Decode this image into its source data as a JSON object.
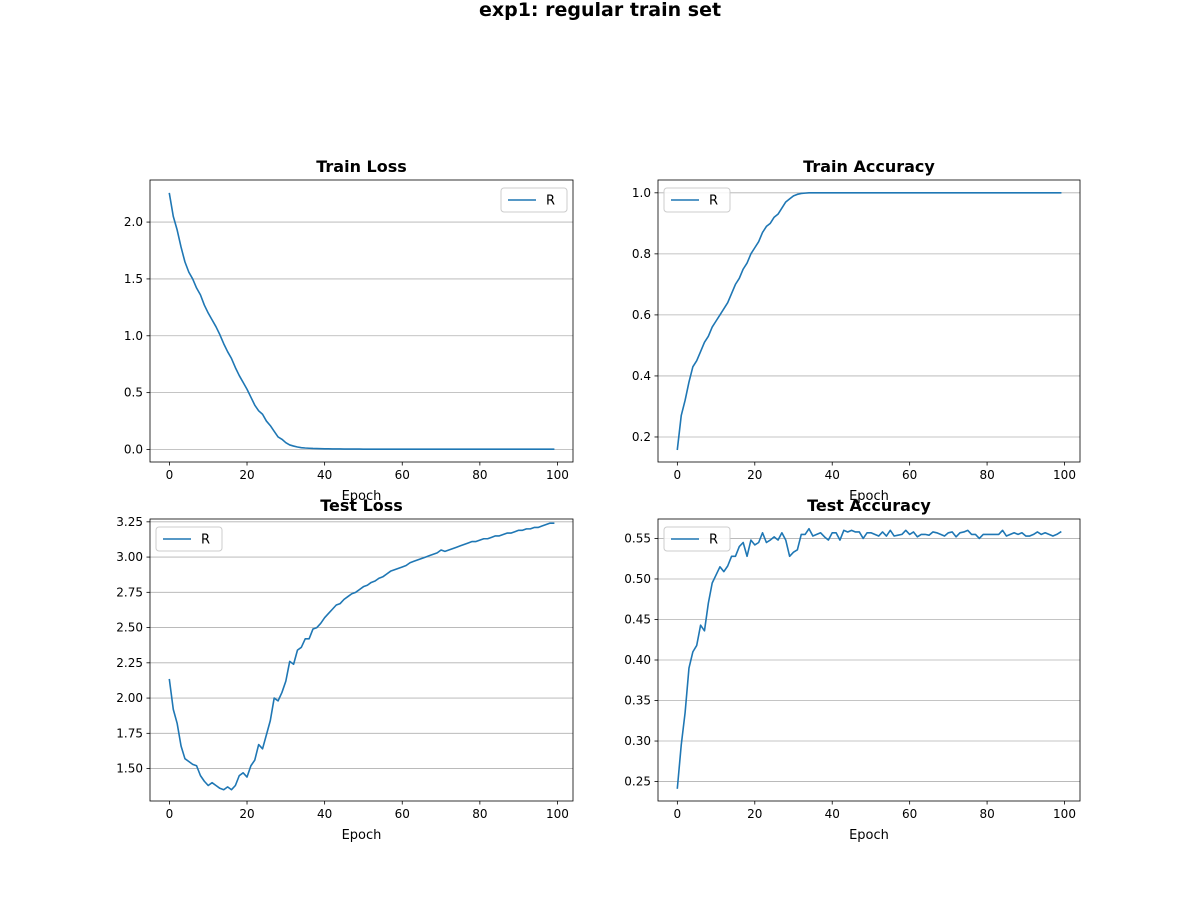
{
  "figure": {
    "suptitle": "exp1: regular train set"
  },
  "colors": {
    "line": "#1f77b4",
    "grid": "#b0b0b0",
    "axis": "#000000",
    "background": "#ffffff"
  },
  "chart_data": [
    {
      "type": "line",
      "title": "Train Loss",
      "xlabel": "Epoch",
      "ylabel": "",
      "grid": "y",
      "legend": "upper right",
      "xlim": [
        -5,
        104
      ],
      "ylim": [
        -0.11,
        2.37
      ],
      "xticks": [
        "0",
        "20",
        "40",
        "60",
        "80",
        "100"
      ],
      "yticks": [
        "0.0",
        "0.5",
        "1.0",
        "1.5",
        "2.0"
      ],
      "series": [
        {
          "name": "R",
          "values": [
            2.25,
            2.05,
            1.93,
            1.78,
            1.65,
            1.56,
            1.5,
            1.42,
            1.36,
            1.27,
            1.2,
            1.14,
            1.08,
            1.01,
            0.93,
            0.86,
            0.8,
            0.72,
            0.65,
            0.59,
            0.53,
            0.46,
            0.39,
            0.34,
            0.31,
            0.25,
            0.21,
            0.16,
            0.11,
            0.09,
            0.06,
            0.04,
            0.03,
            0.022,
            0.016,
            0.013,
            0.011,
            0.009,
            0.008,
            0.007,
            0.006,
            0.006,
            0.005,
            0.005,
            0.005,
            0.004,
            0.004,
            0.004,
            0.004,
            0.004,
            0.003,
            0.003,
            0.003,
            0.003,
            0.003,
            0.003,
            0.003,
            0.003,
            0.003,
            0.003,
            0.003,
            0.003,
            0.003,
            0.003,
            0.003,
            0.003,
            0.003,
            0.003,
            0.003,
            0.003,
            0.003,
            0.003,
            0.003,
            0.003,
            0.003,
            0.003,
            0.003,
            0.003,
            0.003,
            0.003,
            0.003,
            0.003,
            0.003,
            0.003,
            0.003,
            0.003,
            0.003,
            0.003,
            0.003,
            0.003,
            0.003,
            0.003,
            0.003,
            0.003,
            0.003,
            0.003,
            0.003,
            0.003,
            0.003,
            0.003
          ]
        }
      ]
    },
    {
      "type": "line",
      "title": "Train Accuracy",
      "xlabel": "Epoch",
      "ylabel": "",
      "grid": "y",
      "legend": "upper left",
      "xlim": [
        -5,
        104
      ],
      "ylim": [
        0.118,
        1.042
      ],
      "xticks": [
        "0",
        "20",
        "40",
        "60",
        "80",
        "100"
      ],
      "yticks": [
        "0.2",
        "0.4",
        "0.6",
        "0.8",
        "1.0"
      ],
      "series": [
        {
          "name": "R",
          "values": [
            0.16,
            0.27,
            0.32,
            0.38,
            0.43,
            0.45,
            0.48,
            0.51,
            0.53,
            0.56,
            0.58,
            0.6,
            0.62,
            0.64,
            0.67,
            0.7,
            0.72,
            0.75,
            0.77,
            0.8,
            0.82,
            0.84,
            0.87,
            0.89,
            0.9,
            0.92,
            0.93,
            0.95,
            0.97,
            0.98,
            0.99,
            0.995,
            0.998,
            0.999,
            1.0,
            1.0,
            1.0,
            1.0,
            1.0,
            1.0,
            1.0,
            1.0,
            1.0,
            1.0,
            1.0,
            1.0,
            1.0,
            1.0,
            1.0,
            1.0,
            1.0,
            1.0,
            1.0,
            1.0,
            1.0,
            1.0,
            1.0,
            1.0,
            1.0,
            1.0,
            1.0,
            1.0,
            1.0,
            1.0,
            1.0,
            1.0,
            1.0,
            1.0,
            1.0,
            1.0,
            1.0,
            1.0,
            1.0,
            1.0,
            1.0,
            1.0,
            1.0,
            1.0,
            1.0,
            1.0,
            1.0,
            1.0,
            1.0,
            1.0,
            1.0,
            1.0,
            1.0,
            1.0,
            1.0,
            1.0,
            1.0,
            1.0,
            1.0,
            1.0,
            1.0,
            1.0,
            1.0,
            1.0,
            1.0,
            1.0
          ]
        }
      ]
    },
    {
      "type": "line",
      "title": "Test Loss",
      "xlabel": "Epoch",
      "ylabel": "",
      "grid": "y",
      "legend": "upper left",
      "xlim": [
        -5,
        104
      ],
      "ylim": [
        1.27,
        3.27
      ],
      "xticks": [
        "0",
        "20",
        "40",
        "60",
        "80",
        "100"
      ],
      "yticks": [
        "1.50",
        "1.75",
        "2.00",
        "2.25",
        "2.50",
        "2.75",
        "3.00",
        "3.25"
      ],
      "series": [
        {
          "name": "R",
          "values": [
            2.13,
            1.92,
            1.82,
            1.66,
            1.57,
            1.55,
            1.53,
            1.52,
            1.45,
            1.41,
            1.38,
            1.4,
            1.38,
            1.36,
            1.35,
            1.37,
            1.35,
            1.38,
            1.45,
            1.47,
            1.44,
            1.52,
            1.56,
            1.67,
            1.64,
            1.74,
            1.84,
            2.0,
            1.98,
            2.04,
            2.12,
            2.26,
            2.24,
            2.34,
            2.36,
            2.42,
            2.42,
            2.49,
            2.5,
            2.53,
            2.57,
            2.6,
            2.63,
            2.66,
            2.67,
            2.7,
            2.72,
            2.74,
            2.75,
            2.77,
            2.79,
            2.8,
            2.82,
            2.83,
            2.85,
            2.86,
            2.88,
            2.9,
            2.91,
            2.92,
            2.93,
            2.94,
            2.96,
            2.97,
            2.98,
            2.99,
            3.0,
            3.01,
            3.02,
            3.03,
            3.05,
            3.04,
            3.05,
            3.06,
            3.07,
            3.08,
            3.09,
            3.1,
            3.11,
            3.11,
            3.12,
            3.13,
            3.13,
            3.14,
            3.15,
            3.15,
            3.16,
            3.17,
            3.17,
            3.18,
            3.19,
            3.19,
            3.2,
            3.2,
            3.21,
            3.21,
            3.22,
            3.23,
            3.24,
            3.24
          ]
        }
      ]
    },
    {
      "type": "line",
      "title": "Test Accuracy",
      "xlabel": "Epoch",
      "ylabel": "",
      "grid": "y",
      "legend": "upper left",
      "xlim": [
        -5,
        104
      ],
      "ylim": [
        0.226,
        0.574
      ],
      "xticks": [
        "0",
        "20",
        "40",
        "60",
        "80",
        "100"
      ],
      "yticks": [
        "0.25",
        "0.30",
        "0.35",
        "0.40",
        "0.45",
        "0.50",
        "0.55"
      ],
      "series": [
        {
          "name": "R",
          "values": [
            0.242,
            0.295,
            0.335,
            0.39,
            0.41,
            0.418,
            0.443,
            0.436,
            0.47,
            0.495,
            0.505,
            0.515,
            0.509,
            0.516,
            0.528,
            0.528,
            0.54,
            0.545,
            0.528,
            0.548,
            0.542,
            0.545,
            0.557,
            0.545,
            0.548,
            0.552,
            0.548,
            0.557,
            0.548,
            0.528,
            0.533,
            0.536,
            0.555,
            0.555,
            0.562,
            0.553,
            0.555,
            0.557,
            0.552,
            0.548,
            0.557,
            0.557,
            0.548,
            0.56,
            0.558,
            0.56,
            0.558,
            0.558,
            0.55,
            0.557,
            0.557,
            0.555,
            0.553,
            0.558,
            0.553,
            0.56,
            0.553,
            0.554,
            0.555,
            0.56,
            0.555,
            0.558,
            0.552,
            0.555,
            0.555,
            0.554,
            0.558,
            0.557,
            0.555,
            0.553,
            0.557,
            0.558,
            0.552,
            0.557,
            0.558,
            0.56,
            0.555,
            0.555,
            0.55,
            0.555,
            0.555,
            0.555,
            0.555,
            0.555,
            0.56,
            0.553,
            0.555,
            0.557,
            0.555,
            0.557,
            0.553,
            0.553,
            0.555,
            0.558,
            0.555,
            0.557,
            0.555,
            0.553,
            0.555,
            0.558
          ]
        }
      ]
    }
  ]
}
